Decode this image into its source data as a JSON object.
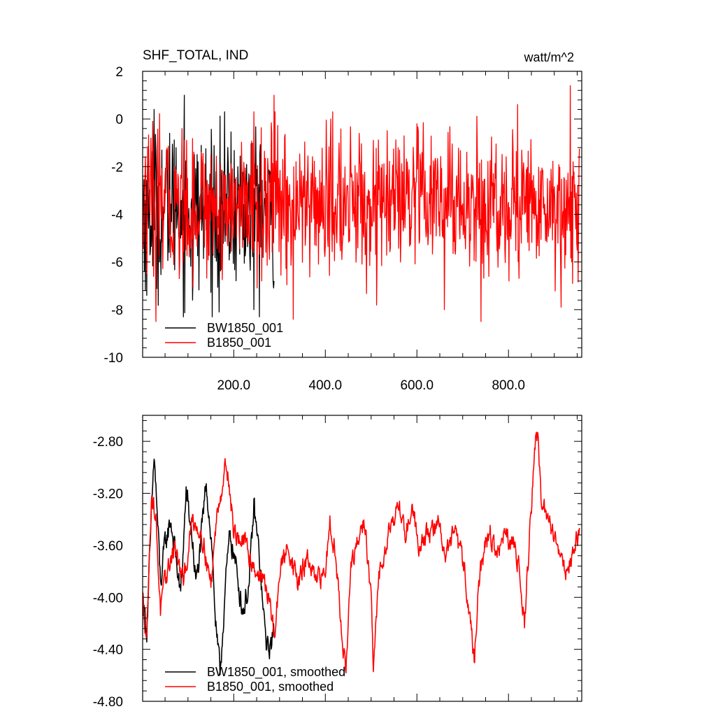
{
  "chart_data": [
    {
      "type": "line",
      "title": "SHF_TOTAL, IND",
      "units": "watt/m^2",
      "ylim": [
        -10,
        2
      ],
      "yticks": [
        2,
        0,
        -2,
        -4,
        -6,
        -8,
        -10
      ],
      "ytick_labels": [
        "2",
        "0",
        "-2",
        "-4",
        "-6",
        "-8",
        "-10"
      ],
      "xlim": [
        1,
        960
      ],
      "xticks": [
        200,
        400,
        600,
        800
      ],
      "xtick_labels": [
        "200.0",
        "400.0",
        "600.0",
        "800.0"
      ],
      "grid": false,
      "legend_position": "bottom-left",
      "series": [
        {
          "name": "BW1850_001",
          "color": "#000000",
          "x_start": 1,
          "x_end": 288,
          "mean": -3.8,
          "amplitude": 1.6,
          "peaks": [
            [
              26,
              0.4
            ],
            [
              60,
              -0.6
            ],
            [
              74,
              -1.2
            ],
            [
              92,
              1.0
            ],
            [
              168,
              -8.1
            ],
            [
              244,
              -8.0
            ],
            [
              288,
              -6.8
            ],
            [
              10,
              -7.4
            ],
            [
              110,
              -7.6
            ]
          ]
        },
        {
          "name": "B1850_001",
          "color": "#ff0000",
          "x_start": 1,
          "x_end": 955,
          "mean": -3.6,
          "amplitude": 1.5,
          "peaks": [
            [
              30,
              -8.5
            ],
            [
              288,
              1.0
            ],
            [
              330,
              -8.4
            ],
            [
              505,
              -0.9
            ],
            [
              603,
              -0.5
            ],
            [
              660,
              -8.0
            ],
            [
              740,
              -8.5
            ],
            [
              820,
              0.6
            ],
            [
              935,
              1.4
            ],
            [
              915,
              -7.9
            ]
          ]
        }
      ]
    },
    {
      "type": "line",
      "title": "",
      "ylim": [
        -4.8,
        -2.6
      ],
      "yticks": [
        -2.8,
        -3.2,
        -3.6,
        -4.0,
        -4.4,
        -4.8
      ],
      "ytick_labels": [
        "-2.80",
        "-3.20",
        "-3.60",
        "-4.00",
        "-4.40",
        "-4.80"
      ],
      "xlim": [
        1,
        960
      ],
      "grid": false,
      "legend_position": "bottom-left",
      "series": [
        {
          "name": "BW1850_001, smoothed",
          "color": "#000000",
          "x_start": 1,
          "x_end": 288,
          "anchors": [
            [
              1,
              -4.0
            ],
            [
              10,
              -4.25
            ],
            [
              18,
              -3.6
            ],
            [
              26,
              -2.9
            ],
            [
              32,
              -3.3
            ],
            [
              40,
              -3.9
            ],
            [
              50,
              -3.6
            ],
            [
              62,
              -3.4
            ],
            [
              74,
              -3.7
            ],
            [
              84,
              -4.0
            ],
            [
              96,
              -3.2
            ],
            [
              108,
              -3.5
            ],
            [
              118,
              -3.9
            ],
            [
              128,
              -3.6
            ],
            [
              140,
              -3.1
            ],
            [
              152,
              -3.6
            ],
            [
              162,
              -4.3
            ],
            [
              170,
              -4.6
            ],
            [
              180,
              -4.0
            ],
            [
              192,
              -3.5
            ],
            [
              206,
              -3.8
            ],
            [
              220,
              -4.1
            ],
            [
              234,
              -3.9
            ],
            [
              244,
              -3.3
            ],
            [
              256,
              -3.7
            ],
            [
              266,
              -4.2
            ],
            [
              274,
              -4.4
            ],
            [
              288,
              -4.3
            ]
          ],
          "noise": 0.18
        },
        {
          "name": "B1850_001, smoothed",
          "color": "#ff0000",
          "x_start": 1,
          "x_end": 955,
          "anchors": [
            [
              1,
              -4.0
            ],
            [
              10,
              -4.3
            ],
            [
              20,
              -3.2
            ],
            [
              30,
              -3.4
            ],
            [
              40,
              -4.1
            ],
            [
              55,
              -3.8
            ],
            [
              70,
              -3.6
            ],
            [
              90,
              -3.9
            ],
            [
              110,
              -3.4
            ],
            [
              130,
              -3.5
            ],
            [
              150,
              -3.9
            ],
            [
              165,
              -3.3
            ],
            [
              185,
              -2.95
            ],
            [
              200,
              -3.5
            ],
            [
              225,
              -3.6
            ],
            [
              250,
              -3.8
            ],
            [
              270,
              -3.9
            ],
            [
              290,
              -4.3
            ],
            [
              300,
              -3.8
            ],
            [
              320,
              -3.6
            ],
            [
              340,
              -3.9
            ],
            [
              360,
              -3.7
            ],
            [
              380,
              -3.9
            ],
            [
              400,
              -3.8
            ],
            [
              410,
              -3.4
            ],
            [
              420,
              -3.6
            ],
            [
              435,
              -4.2
            ],
            [
              445,
              -4.6
            ],
            [
              455,
              -3.8
            ],
            [
              470,
              -3.6
            ],
            [
              485,
              -3.4
            ],
            [
              500,
              -4.0
            ],
            [
              505,
              -4.6
            ],
            [
              515,
              -3.9
            ],
            [
              530,
              -3.6
            ],
            [
              545,
              -3.4
            ],
            [
              560,
              -3.3
            ],
            [
              575,
              -3.5
            ],
            [
              590,
              -3.3
            ],
            [
              605,
              -3.6
            ],
            [
              620,
              -3.5
            ],
            [
              635,
              -3.5
            ],
            [
              650,
              -3.4
            ],
            [
              660,
              -3.7
            ],
            [
              680,
              -3.5
            ],
            [
              700,
              -3.7
            ],
            [
              715,
              -4.1
            ],
            [
              725,
              -4.5
            ],
            [
              735,
              -3.9
            ],
            [
              748,
              -3.6
            ],
            [
              760,
              -3.5
            ],
            [
              775,
              -3.7
            ],
            [
              790,
              -3.5
            ],
            [
              800,
              -3.6
            ],
            [
              815,
              -3.6
            ],
            [
              825,
              -3.8
            ],
            [
              835,
              -4.2
            ],
            [
              845,
              -3.6
            ],
            [
              855,
              -3.0
            ],
            [
              860,
              -2.7
            ],
            [
              866,
              -2.85
            ],
            [
              872,
              -3.3
            ],
            [
              885,
              -3.4
            ],
            [
              900,
              -3.5
            ],
            [
              915,
              -3.7
            ],
            [
              930,
              -3.8
            ],
            [
              945,
              -3.6
            ],
            [
              955,
              -3.5
            ]
          ],
          "noise": 0.15
        }
      ]
    }
  ]
}
